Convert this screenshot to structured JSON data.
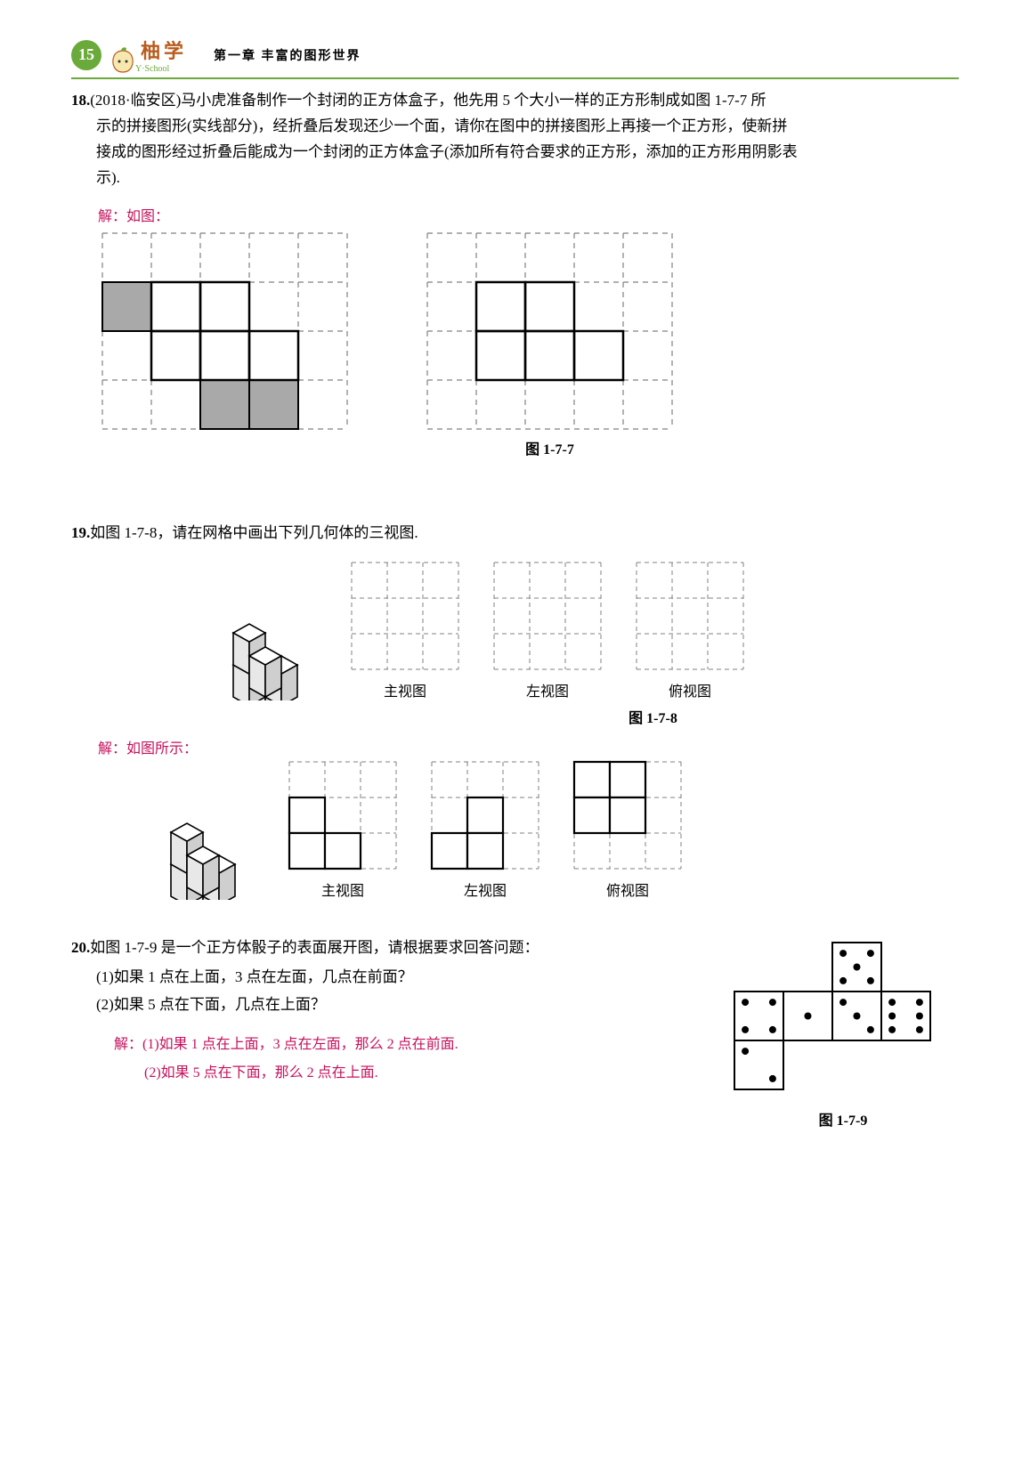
{
  "header": {
    "page_number": "15",
    "brand": "柚学",
    "brand_sub": "Y·School",
    "chapter": "第一章  丰富的图形世界"
  },
  "colors": {
    "green": "#6aaa3a",
    "orange": "#b85c1e",
    "magenta": "#c6115d",
    "gray_fill": "#a9a9a9",
    "solid_line": "#000000",
    "dash_line": "#808080"
  },
  "q18": {
    "number": "18.",
    "source": "(2018·临安区)",
    "text_l1": "马小虎准备制作一个封闭的正方体盒子，他先用 5 个大小一样的正方形制成如图 1-7-7 所",
    "text_l2": "示的拼接图形(实线部分)，经折叠后发现还少一个面，请你在图中的拼接图形上再接一个正方形，使新拼",
    "text_l3": "接成的图形经过折叠后能成为一个封闭的正方体盒子(添加所有符合要求的正方形，添加的正方形用阴影表",
    "text_l4": "示).",
    "answer_label": "解：如图：",
    "fig_right_caption": "图 1-7-7",
    "grid_left": {
      "rows": 4,
      "cols": 5,
      "cell": 55,
      "shaded": [
        [
          1,
          0
        ],
        [
          3,
          2
        ],
        [
          3,
          3
        ]
      ],
      "solid_cells": [
        [
          1,
          1
        ],
        [
          1,
          2
        ],
        [
          2,
          1
        ],
        [
          2,
          2
        ],
        [
          2,
          3
        ]
      ]
    },
    "grid_right": {
      "rows": 4,
      "cols": 5,
      "cell": 55,
      "shaded": [],
      "solid_cells": [
        [
          1,
          1
        ],
        [
          1,
          2
        ],
        [
          2,
          1
        ],
        [
          2,
          2
        ],
        [
          2,
          3
        ]
      ]
    }
  },
  "q19": {
    "number": "19.",
    "text": "如图 1-7-8，请在网格中画出下列几何体的三视图.",
    "labels": {
      "front": "主视图",
      "left": "左视图",
      "top": "俯视图"
    },
    "fig_caption": "图 1-7-8",
    "answer_label": "解：如图所示：",
    "empty_grid": {
      "rows": 3,
      "cols": 3,
      "cell": 40
    },
    "front_view": {
      "rows": 3,
      "cols": 3,
      "cell": 40,
      "filled": [
        [
          1,
          0
        ],
        [
          2,
          0
        ],
        [
          2,
          1
        ]
      ]
    },
    "left_view": {
      "rows": 3,
      "cols": 3,
      "cell": 40,
      "filled": [
        [
          1,
          1
        ],
        [
          2,
          0
        ],
        [
          2,
          1
        ]
      ]
    },
    "top_view": {
      "rows": 3,
      "cols": 3,
      "cell": 40,
      "filled": [
        [
          0,
          0
        ],
        [
          0,
          1
        ],
        [
          1,
          0
        ],
        [
          1,
          1
        ]
      ]
    }
  },
  "q20": {
    "number": "20.",
    "text": "如图 1-7-9 是一个正方体骰子的表面展开图，请根据要求回答问题：",
    "sub1": "(1)如果 1 点在上面，3 点在左面，几点在前面？",
    "sub2": "(2)如果 5 点在下面，几点在上面？",
    "answer_l1": "解：(1)如果 1 点在上面，3 点在左面，那么 2 点在前面.",
    "answer_l2": "(2)如果 5 点在下面，那么 2 点在上面.",
    "fig_caption": "图 1-7-9",
    "dice": {
      "cell": 55,
      "faces": [
        {
          "row": 0,
          "col": 2,
          "pips": 5
        },
        {
          "row": 1,
          "col": 0,
          "pips": 4
        },
        {
          "row": 1,
          "col": 1,
          "pips": 1
        },
        {
          "row": 1,
          "col": 2,
          "pips": 3
        },
        {
          "row": 1,
          "col": 3,
          "pips": 6
        },
        {
          "row": 2,
          "col": 0,
          "pips": 2
        }
      ]
    }
  }
}
